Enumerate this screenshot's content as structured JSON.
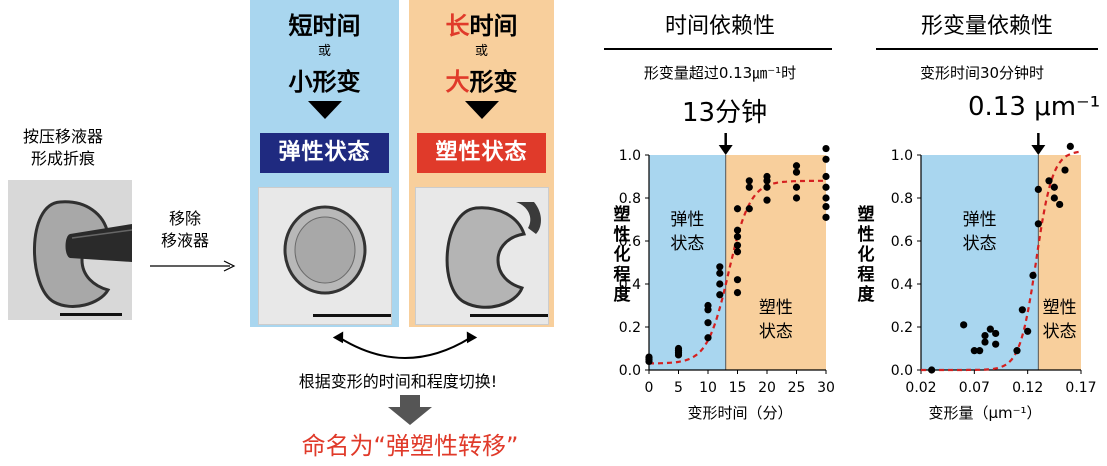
{
  "left": {
    "caption": [
      "按压移液器",
      "形成折痕"
    ],
    "remove_label": [
      "移除",
      "移液器"
    ]
  },
  "panel_elastic": {
    "line1": "短时间",
    "or": "或",
    "line3": "小形变",
    "state": "弹性状态"
  },
  "panel_plastic": {
    "line1_red": "长",
    "line1_rest": "时间",
    "or": "或",
    "line3_red": "大",
    "line3_rest": "形变",
    "state": "塑性状态"
  },
  "switch_text": "根据变形的时间和程度切换!",
  "naming": "命名为“弹塑性转移”",
  "colors": {
    "elastic_bg": "#a9d6ef",
    "plastic_bg": "#f8cf9c",
    "elastic_state": "#1f2a80",
    "plastic_state": "#e03a2a",
    "fit_curve": "#d42020"
  },
  "chart_data": [
    {
      "type": "scatter",
      "title": "时间依赖性",
      "subtitle": "形变量超过0.13㎛⁻¹时",
      "annotation": "13分钟",
      "threshold_x": 13,
      "region_labels": {
        "left": [
          "弹性",
          "状态"
        ],
        "right": [
          "塑性",
          "状态"
        ]
      },
      "xlabel": "变形时间（分）",
      "ylabel": "塑性化程度",
      "xlim": [
        0,
        30
      ],
      "ylim": [
        0,
        1.0
      ],
      "xticks": [
        0,
        5,
        10,
        15,
        20,
        25,
        30
      ],
      "yticks": [
        0.0,
        0.2,
        0.4,
        0.6,
        0.8,
        1.0
      ],
      "points": [
        [
          0,
          0.05
        ],
        [
          0,
          0.04
        ],
        [
          0,
          0.06
        ],
        [
          5,
          0.07
        ],
        [
          5,
          0.1
        ],
        [
          5,
          0.08
        ],
        [
          5,
          0.09
        ],
        [
          10,
          0.15
        ],
        [
          10,
          0.28
        ],
        [
          10,
          0.3
        ],
        [
          10,
          0.22
        ],
        [
          12,
          0.45
        ],
        [
          12,
          0.48
        ],
        [
          12,
          0.35
        ],
        [
          12,
          0.4
        ],
        [
          15,
          0.42
        ],
        [
          15,
          0.36
        ],
        [
          15,
          0.65
        ],
        [
          15,
          0.62
        ],
        [
          15,
          0.58
        ],
        [
          15,
          0.75
        ],
        [
          15,
          0.55
        ],
        [
          17,
          0.75
        ],
        [
          17,
          0.85
        ],
        [
          17,
          0.88
        ],
        [
          20,
          0.88
        ],
        [
          20,
          0.9
        ],
        [
          20,
          0.85
        ],
        [
          20,
          0.79
        ],
        [
          25,
          0.95
        ],
        [
          25,
          0.92
        ],
        [
          25,
          0.85
        ],
        [
          25,
          0.8
        ],
        [
          30,
          1.03
        ],
        [
          30,
          0.98
        ],
        [
          30,
          0.9
        ],
        [
          30,
          0.85
        ],
        [
          30,
          0.8
        ],
        [
          30,
          0.76
        ],
        [
          30,
          0.71
        ]
      ],
      "fit": {
        "type": "sigmoid",
        "ymin": 0.03,
        "ymax": 0.88,
        "x0": 13.5,
        "k": 0.55
      }
    },
    {
      "type": "scatter",
      "title": "形变量依赖性",
      "subtitle": "变形时间30分钟时",
      "annotation": "0.13 μm⁻¹",
      "threshold_x": 0.13,
      "region_labels": {
        "left": [
          "弹性",
          "状态"
        ],
        "right": [
          "塑性",
          "状态"
        ]
      },
      "xlabel": "变形量（μm⁻¹）",
      "ylabel": "塑性化程度",
      "xlim": [
        0.02,
        0.17
      ],
      "ylim": [
        0,
        1.0
      ],
      "xticks": [
        0.02,
        0.07,
        0.12,
        0.17
      ],
      "yticks": [
        0.0,
        0.2,
        0.4,
        0.6,
        0.8,
        1.0
      ],
      "points": [
        [
          0.03,
          0.0
        ],
        [
          0.06,
          0.21
        ],
        [
          0.07,
          0.09
        ],
        [
          0.08,
          0.13
        ],
        [
          0.08,
          0.16
        ],
        [
          0.085,
          0.19
        ],
        [
          0.09,
          0.17
        ],
        [
          0.09,
          0.12
        ],
        [
          0.075,
          0.09
        ],
        [
          0.11,
          0.09
        ],
        [
          0.115,
          0.28
        ],
        [
          0.12,
          0.18
        ],
        [
          0.125,
          0.44
        ],
        [
          0.13,
          0.68
        ],
        [
          0.13,
          0.84
        ],
        [
          0.14,
          0.88
        ],
        [
          0.145,
          0.85
        ],
        [
          0.145,
          0.8
        ],
        [
          0.15,
          0.77
        ],
        [
          0.155,
          0.93
        ],
        [
          0.16,
          1.04
        ]
      ],
      "fit": {
        "type": "sigmoid",
        "ymin": 0.0,
        "ymax": 1.02,
        "x0": 0.128,
        "k": 130
      }
    }
  ]
}
